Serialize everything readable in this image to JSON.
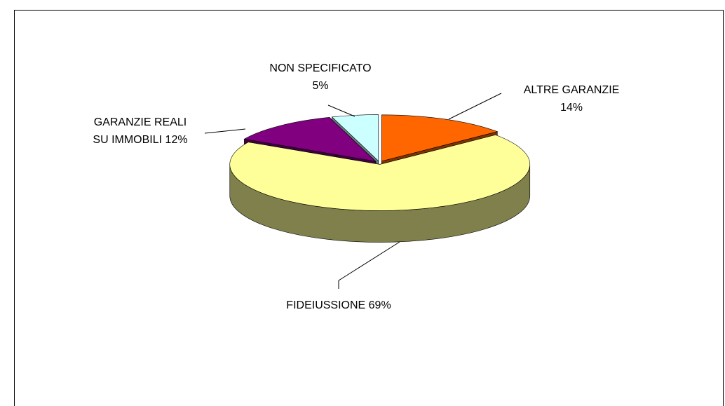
{
  "chart_data": {
    "type": "pie3d",
    "categories": [
      "ALTRE GARANZIE",
      "FIDEIUSSIONE",
      "GARANZIE REALI SU IMMOBILI",
      "NON SPECIFICATO"
    ],
    "values": [
      14,
      69,
      12,
      5
    ],
    "value_labels": [
      "14%",
      "69%",
      "12%",
      "5%"
    ],
    "colors": [
      "#ff6600",
      "#ffff99",
      "#800080",
      "#ccffff"
    ]
  }
}
